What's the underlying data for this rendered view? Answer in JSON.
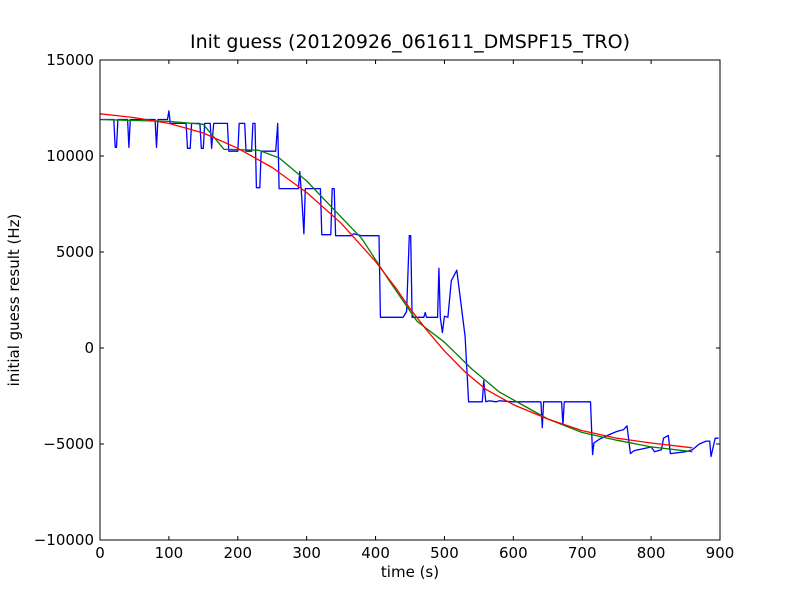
{
  "chart_data": {
    "type": "line",
    "title": "Init guess (20120926_061611_DMSPF15_TRO)",
    "xlabel": "time (s)",
    "ylabel": "initial guess result (Hz)",
    "xlim": [
      0,
      900
    ],
    "ylim": [
      -10000,
      15000
    ],
    "x_ticks": [
      0,
      100,
      200,
      300,
      400,
      500,
      600,
      700,
      800,
      900
    ],
    "y_ticks": [
      -10000,
      -5000,
      0,
      5000,
      10000,
      15000
    ],
    "x_tick_labels": [
      "0",
      "100",
      "200",
      "300",
      "400",
      "500",
      "600",
      "700",
      "800",
      "900"
    ],
    "y_tick_labels": [
      "−10000",
      "−5000",
      "0",
      "5000",
      "10000",
      "15000"
    ],
    "grid": false,
    "series": [
      {
        "color": "#0000ff",
        "points": [
          [
            0,
            11900
          ],
          [
            20,
            11900
          ],
          [
            22,
            10450
          ],
          [
            24,
            10450
          ],
          [
            26,
            11900
          ],
          [
            40,
            11900
          ],
          [
            42,
            10450
          ],
          [
            44,
            11900
          ],
          [
            80,
            11900
          ],
          [
            82,
            10450
          ],
          [
            84,
            11900
          ],
          [
            98,
            11900
          ],
          [
            100,
            12350
          ],
          [
            102,
            11700
          ],
          [
            125,
            11700
          ],
          [
            127,
            10400
          ],
          [
            131,
            10400
          ],
          [
            133,
            11700
          ],
          [
            145,
            11700
          ],
          [
            147,
            10400
          ],
          [
            150,
            10400
          ],
          [
            152,
            11700
          ],
          [
            160,
            11700
          ],
          [
            162,
            10400
          ],
          [
            165,
            11700
          ],
          [
            185,
            11700
          ],
          [
            187,
            10250
          ],
          [
            200,
            10250
          ],
          [
            202,
            11700
          ],
          [
            210,
            11700
          ],
          [
            212,
            10250
          ],
          [
            220,
            10250
          ],
          [
            222,
            11700
          ],
          [
            225,
            11700
          ],
          [
            227,
            8350
          ],
          [
            232,
            8350
          ],
          [
            234,
            10250
          ],
          [
            255,
            10250
          ],
          [
            258,
            11700
          ],
          [
            260,
            8300
          ],
          [
            288,
            8300
          ],
          [
            290,
            9200
          ],
          [
            293,
            7800
          ],
          [
            296,
            5950
          ],
          [
            298,
            8300
          ],
          [
            320,
            8300
          ],
          [
            322,
            5900
          ],
          [
            335,
            5900
          ],
          [
            337,
            8300
          ],
          [
            340,
            8300
          ],
          [
            342,
            5850
          ],
          [
            365,
            5850
          ],
          [
            368,
            5950
          ],
          [
            380,
            5850
          ],
          [
            405,
            5850
          ],
          [
            407,
            1600
          ],
          [
            440,
            1600
          ],
          [
            445,
            1900
          ],
          [
            449,
            5850
          ],
          [
            451,
            5850
          ],
          [
            453,
            1600
          ],
          [
            470,
            1600
          ],
          [
            472,
            1850
          ],
          [
            474,
            1600
          ],
          [
            490,
            1600
          ],
          [
            492,
            4150
          ],
          [
            494,
            1600
          ],
          [
            497,
            800
          ],
          [
            500,
            1650
          ],
          [
            505,
            1600
          ],
          [
            510,
            3500
          ],
          [
            518,
            4050
          ],
          [
            530,
            600
          ],
          [
            535,
            -2800
          ],
          [
            555,
            -2800
          ],
          [
            557,
            -1700
          ],
          [
            560,
            -2800
          ],
          [
            565,
            -2750
          ],
          [
            575,
            -2800
          ],
          [
            580,
            -2750
          ],
          [
            600,
            -2800
          ],
          [
            640,
            -2800
          ],
          [
            642,
            -4150
          ],
          [
            644,
            -2800
          ],
          [
            670,
            -2800
          ],
          [
            672,
            -4000
          ],
          [
            674,
            -2800
          ],
          [
            690,
            -2800
          ],
          [
            695,
            -2800
          ],
          [
            712,
            -2800
          ],
          [
            715,
            -5550
          ],
          [
            717,
            -4950
          ],
          [
            725,
            -4750
          ],
          [
            740,
            -4500
          ],
          [
            750,
            -4350
          ],
          [
            760,
            -4250
          ],
          [
            765,
            -4050
          ],
          [
            770,
            -5500
          ],
          [
            775,
            -5350
          ],
          [
            795,
            -5200
          ],
          [
            800,
            -5150
          ],
          [
            805,
            -5400
          ],
          [
            815,
            -5300
          ],
          [
            818,
            -4700
          ],
          [
            825,
            -4550
          ],
          [
            828,
            -5500
          ],
          [
            850,
            -5400
          ],
          [
            860,
            -5300
          ],
          [
            870,
            -5000
          ],
          [
            880,
            -4850
          ],
          [
            885,
            -4850
          ],
          [
            887,
            -5650
          ],
          [
            893,
            -4700
          ],
          [
            898,
            -4700
          ]
        ]
      },
      {
        "color": "#008000",
        "points": [
          [
            0,
            11900
          ],
          [
            50,
            11850
          ],
          [
            100,
            11800
          ],
          [
            150,
            11650
          ],
          [
            180,
            10350
          ],
          [
            230,
            10300
          ],
          [
            260,
            9900
          ],
          [
            300,
            8700
          ],
          [
            340,
            7200
          ],
          [
            380,
            5700
          ],
          [
            420,
            3500
          ],
          [
            460,
            1400
          ],
          [
            500,
            300
          ],
          [
            540,
            -1100
          ],
          [
            580,
            -2300
          ],
          [
            620,
            -3100
          ],
          [
            650,
            -3700
          ],
          [
            700,
            -4400
          ],
          [
            750,
            -4800
          ],
          [
            800,
            -5150
          ],
          [
            860,
            -5400
          ]
        ]
      },
      {
        "color": "#ff0000",
        "points": [
          [
            0,
            12200
          ],
          [
            50,
            12000
          ],
          [
            100,
            11700
          ],
          [
            150,
            11200
          ],
          [
            200,
            10400
          ],
          [
            250,
            9400
          ],
          [
            300,
            8100
          ],
          [
            350,
            6500
          ],
          [
            400,
            4500
          ],
          [
            430,
            3100
          ],
          [
            450,
            2050
          ],
          [
            475,
            900
          ],
          [
            500,
            -150
          ],
          [
            530,
            -1250
          ],
          [
            560,
            -2150
          ],
          [
            600,
            -2950
          ],
          [
            650,
            -3700
          ],
          [
            700,
            -4300
          ],
          [
            750,
            -4700
          ],
          [
            800,
            -4950
          ],
          [
            860,
            -5200
          ]
        ]
      }
    ]
  }
}
